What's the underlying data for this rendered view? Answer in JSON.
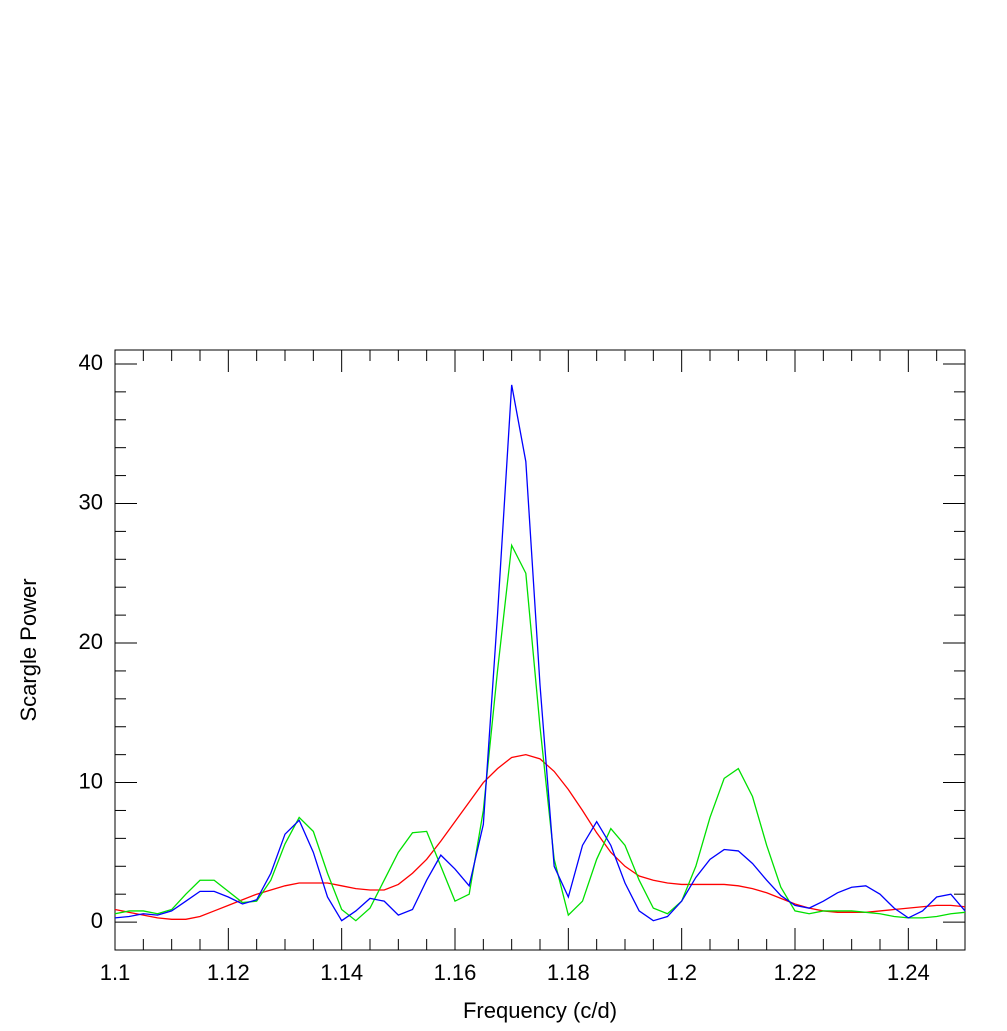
{
  "chart_data": {
    "type": "line",
    "x_label": "Frequency (c/d)",
    "y_label": "Scargle Power",
    "x": [
      1.1,
      1.1025,
      1.105,
      1.1075,
      1.11,
      1.1125,
      1.115,
      1.1175,
      1.12,
      1.1225,
      1.125,
      1.1275,
      1.13,
      1.1325,
      1.135,
      1.1375,
      1.14,
      1.1425,
      1.145,
      1.1475,
      1.15,
      1.1525,
      1.155,
      1.1575,
      1.16,
      1.1625,
      1.165,
      1.1675,
      1.17,
      1.1725,
      1.175,
      1.1775,
      1.18,
      1.1825,
      1.185,
      1.1875,
      1.19,
      1.1925,
      1.195,
      1.1975,
      1.2,
      1.2025,
      1.205,
      1.2075,
      1.21,
      1.2125,
      1.215,
      1.2175,
      1.22,
      1.2225,
      1.225,
      1.2275,
      1.23,
      1.2325,
      1.235,
      1.2375,
      1.24,
      1.2425,
      1.245,
      1.2475,
      1.25
    ],
    "series": [
      {
        "color": "#ff0000",
        "values": [
          0.9,
          0.7,
          0.5,
          0.3,
          0.2,
          0.2,
          0.4,
          0.8,
          1.2,
          1.6,
          2.0,
          2.3,
          2.6,
          2.8,
          2.8,
          2.8,
          2.6,
          2.4,
          2.3,
          2.3,
          2.7,
          3.5,
          4.5,
          5.8,
          7.2,
          8.6,
          10.0,
          11.0,
          11.8,
          12.0,
          11.7,
          10.8,
          9.5,
          8.0,
          6.4,
          5.0,
          4.0,
          3.3,
          3.0,
          2.8,
          2.7,
          2.7,
          2.7,
          2.7,
          2.6,
          2.4,
          2.1,
          1.7,
          1.3,
          1.0,
          0.8,
          0.7,
          0.7,
          0.7,
          0.8,
          0.9,
          1.0,
          1.1,
          1.2,
          1.2,
          1.1
        ]
      },
      {
        "color": "#00e000",
        "values": [
          0.6,
          0.8,
          0.8,
          0.6,
          0.9,
          2.0,
          3.0,
          3.0,
          2.2,
          1.4,
          1.5,
          3.0,
          5.6,
          7.5,
          6.5,
          3.5,
          0.9,
          0.1,
          1.0,
          3.0,
          5.0,
          6.4,
          6.5,
          4.0,
          1.5,
          2.0,
          8.0,
          18,
          27,
          25,
          14,
          4.5,
          0.5,
          1.5,
          4.5,
          6.7,
          5.5,
          3.0,
          1.0,
          0.6,
          1.5,
          4.0,
          7.5,
          10.3,
          11.0,
          9.0,
          5.5,
          2.5,
          0.8,
          0.6,
          0.8,
          0.8,
          0.8,
          0.7,
          0.6,
          0.4,
          0.3,
          0.3,
          0.4,
          0.6,
          0.7
        ]
      },
      {
        "color": "#0000ff",
        "values": [
          0.3,
          0.4,
          0.6,
          0.5,
          0.8,
          1.5,
          2.2,
          2.2,
          1.8,
          1.3,
          1.6,
          3.5,
          6.3,
          7.3,
          5.0,
          1.8,
          0.1,
          0.8,
          1.7,
          1.5,
          0.5,
          0.9,
          3.0,
          4.8,
          3.8,
          2.6,
          7,
          22,
          38.5,
          33,
          17,
          4,
          1.8,
          5.5,
          7.2,
          5.5,
          2.8,
          0.8,
          0.1,
          0.4,
          1.5,
          3.2,
          4.5,
          5.2,
          5.1,
          4.2,
          3.0,
          1.9,
          1.2,
          1.0,
          1.5,
          2.1,
          2.5,
          2.6,
          2.0,
          1.0,
          0.3,
          0.8,
          1.8,
          2.0,
          0.8
        ]
      }
    ],
    "xlim": [
      1.1,
      1.25
    ],
    "ylim": [
      -2,
      41
    ],
    "xticks": [
      1.1,
      1.12,
      1.14,
      1.16,
      1.18,
      1.2,
      1.22,
      1.24
    ],
    "yticks": [
      0,
      10,
      20,
      30,
      40
    ],
    "x_minor_ticks": [
      1.105,
      1.11,
      1.115,
      1.125,
      1.13,
      1.135,
      1.145,
      1.15,
      1.155,
      1.165,
      1.17,
      1.175,
      1.185,
      1.19,
      1.195,
      1.205,
      1.21,
      1.215,
      1.225,
      1.23,
      1.235,
      1.245
    ],
    "y_minor_ticks": [
      2,
      4,
      6,
      8,
      12,
      14,
      16,
      18,
      22,
      24,
      26,
      28,
      32,
      34,
      36,
      38
    ],
    "grid": false
  }
}
